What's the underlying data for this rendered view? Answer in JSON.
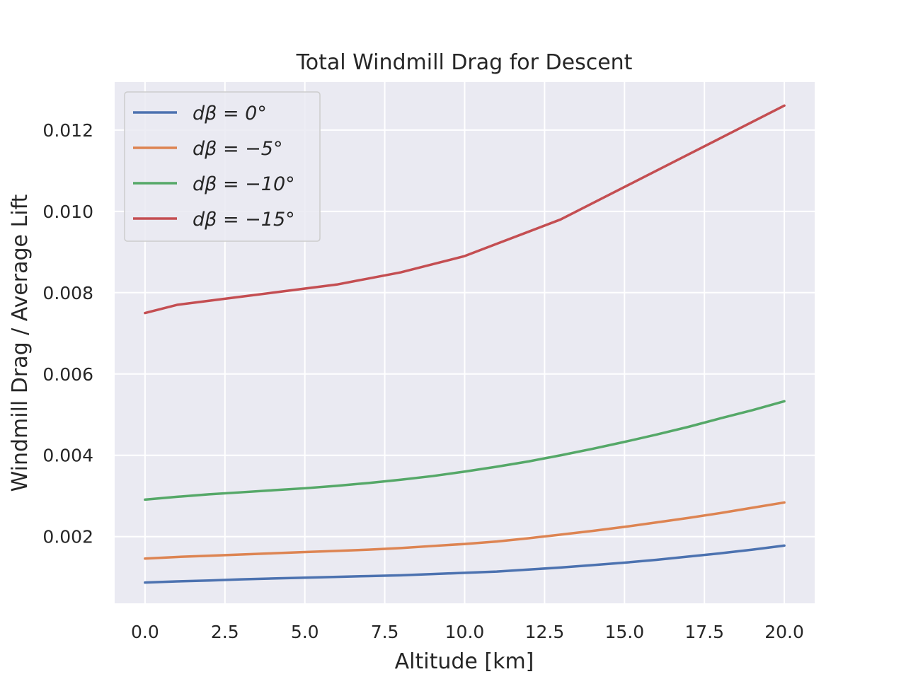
{
  "chart_data": {
    "type": "line",
    "title": "Total Windmill Drag for Descent",
    "xlabel": "Altitude [km]",
    "ylabel": "Windmill Drag / Average Lift",
    "xlim": [
      -0.95,
      20.95
    ],
    "ylim": [
      0.00036,
      0.01318
    ],
    "xticks": [
      0.0,
      2.5,
      5.0,
      7.5,
      10.0,
      12.5,
      15.0,
      17.5,
      20.0
    ],
    "xtick_labels": [
      "0.0",
      "2.5",
      "5.0",
      "7.5",
      "10.0",
      "12.5",
      "15.0",
      "17.5",
      "20.0"
    ],
    "yticks": [
      0.002,
      0.004,
      0.006,
      0.008,
      0.01,
      0.012
    ],
    "ytick_labels": [
      "0.002",
      "0.004",
      "0.006",
      "0.008",
      "0.010",
      "0.012"
    ],
    "grid": true,
    "legend_position": "top-left",
    "background": "#eaeaf2",
    "grid_color": "#ffffff",
    "x": [
      0,
      1,
      2,
      3,
      4,
      5,
      6,
      7,
      8,
      9,
      10,
      11,
      12,
      13,
      14,
      15,
      16,
      17,
      18,
      19,
      20
    ],
    "series": [
      {
        "name": "dβ = 0°",
        "color": "#4c72b0",
        "values": [
          0.00087,
          0.0009,
          0.00092,
          0.00095,
          0.00097,
          0.00099,
          0.00101,
          0.00103,
          0.00105,
          0.00108,
          0.00111,
          0.00114,
          0.00119,
          0.00124,
          0.0013,
          0.00136,
          0.00143,
          0.00151,
          0.00159,
          0.00168,
          0.00178
        ]
      },
      {
        "name": "dβ = −5°",
        "color": "#dd8452",
        "values": [
          0.00146,
          0.0015,
          0.00153,
          0.00156,
          0.00159,
          0.00162,
          0.00165,
          0.00168,
          0.00172,
          0.00177,
          0.00182,
          0.00188,
          0.00196,
          0.00205,
          0.00214,
          0.00224,
          0.00235,
          0.00246,
          0.00258,
          0.00271,
          0.00284
        ]
      },
      {
        "name": "dβ = −10°",
        "color": "#55a868",
        "values": [
          0.00291,
          0.00298,
          0.00304,
          0.00309,
          0.00314,
          0.00319,
          0.00325,
          0.00332,
          0.0034,
          0.00349,
          0.0036,
          0.00372,
          0.00385,
          0.004,
          0.00416,
          0.00433,
          0.00451,
          0.0047,
          0.00491,
          0.00511,
          0.00533
        ]
      },
      {
        "name": "dβ = −15°",
        "color": "#c44e52",
        "values": [
          0.0075,
          0.0077,
          0.0078,
          0.0079,
          0.008,
          0.0081,
          0.0082,
          0.00835,
          0.0085,
          0.0087,
          0.0089,
          0.0092,
          0.0095,
          0.0098,
          0.0102,
          0.0106,
          0.011,
          0.0114,
          0.0118,
          0.0122,
          0.0126
        ]
      }
    ],
    "legend_labels": [
      "dβ = 0°",
      "dβ = −5°",
      "dβ = −10°",
      "dβ = −15°"
    ]
  }
}
